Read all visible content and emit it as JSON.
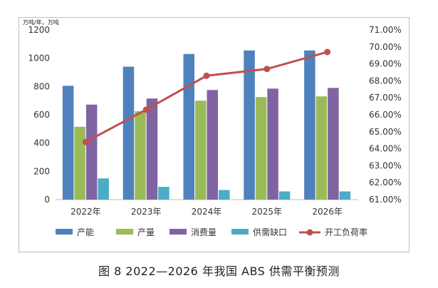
{
  "caption": "图 8  2022—2026 年我国 ABS 供需平衡预测",
  "chart_data": {
    "type": "bar",
    "categories": [
      "2022年",
      "2023年",
      "2024年",
      "2025年",
      "2026年"
    ],
    "y_left": {
      "unit_label": "万吨/年，万吨",
      "ylim": [
        0,
        1200
      ],
      "ticks": [
        0,
        200,
        400,
        600,
        800,
        1000,
        1200
      ]
    },
    "y_right": {
      "ylim": [
        61.0,
        71.0
      ],
      "ticks": [
        "61.00%",
        "62.00%",
        "63.00%",
        "64.00%",
        "65.00%",
        "66.00%",
        "67.00%",
        "68.00%",
        "69.00%",
        "70.00%",
        "71.00%"
      ]
    },
    "series": [
      {
        "name": "产能",
        "type": "bar",
        "axis": "left",
        "color": "#4f81bd",
        "values": [
          805,
          940,
          1030,
          1055,
          1055
        ]
      },
      {
        "name": "产量",
        "type": "bar",
        "axis": "left",
        "color": "#9bbb59",
        "values": [
          515,
          625,
          700,
          725,
          730
        ]
      },
      {
        "name": "消费量",
        "type": "bar",
        "axis": "left",
        "color": "#8064a2",
        "values": [
          672,
          715,
          775,
          785,
          790
        ]
      },
      {
        "name": "供需缺口",
        "type": "bar",
        "axis": "left",
        "color": "#4bacc6",
        "values": [
          150,
          90,
          68,
          58,
          58
        ]
      },
      {
        "name": "开工负荷率",
        "type": "line",
        "axis": "right",
        "color": "#c0504d",
        "values": [
          64.4,
          66.3,
          68.3,
          68.7,
          69.7
        ]
      }
    ],
    "grid": false,
    "legend": "bottom"
  }
}
